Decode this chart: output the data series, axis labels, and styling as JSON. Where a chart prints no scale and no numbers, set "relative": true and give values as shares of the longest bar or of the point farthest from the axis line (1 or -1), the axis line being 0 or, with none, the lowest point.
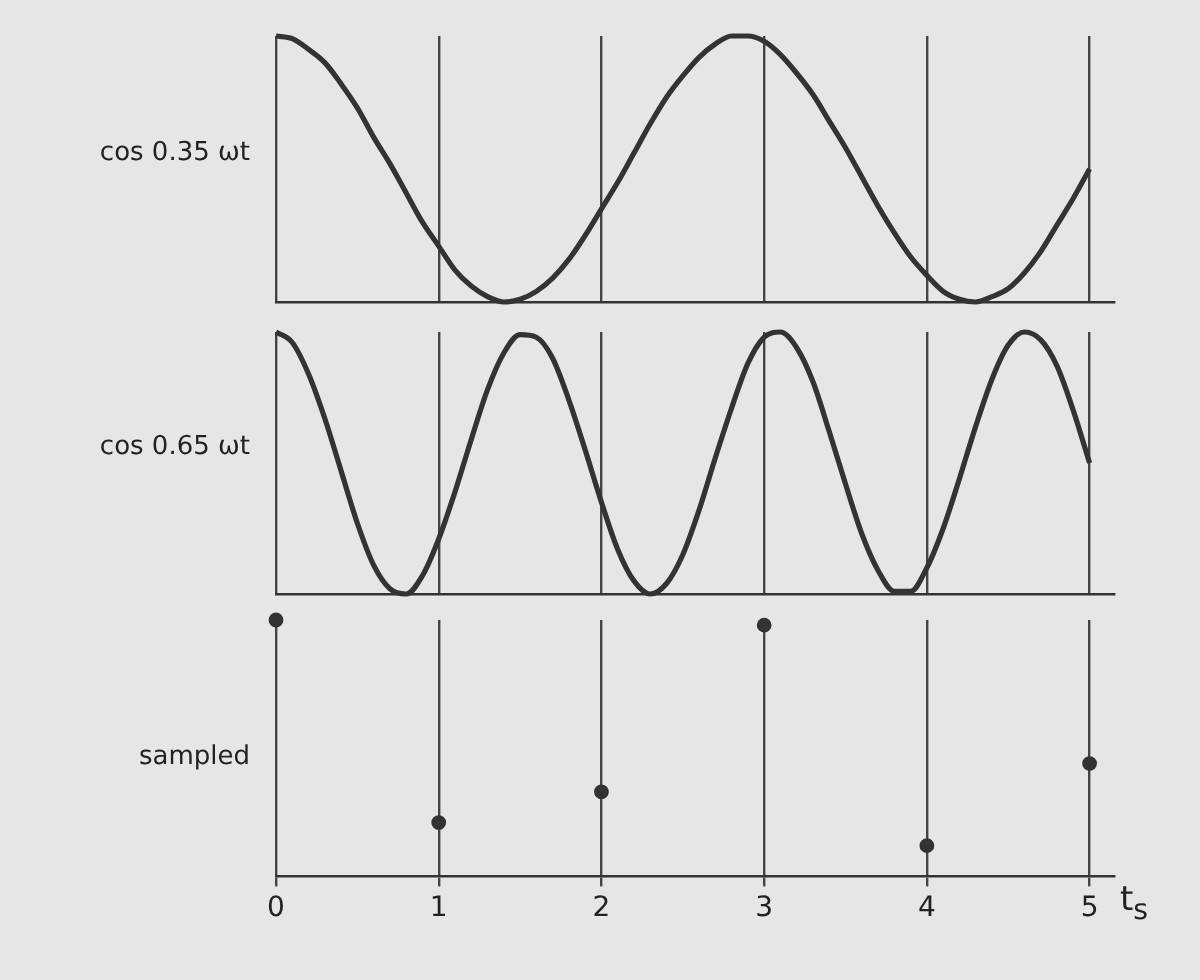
{
  "chart_data": [
    {
      "type": "line",
      "ylabel": "cos 0.35 ωt",
      "relative": true,
      "xlim": [
        0,
        5.15
      ],
      "xticks": [
        0,
        1,
        2,
        3,
        4,
        5
      ],
      "tick_labels": false,
      "grid": "x",
      "marker": "none",
      "color": "#333333",
      "x": [
        0,
        0.1,
        0.2,
        0.3,
        0.4,
        0.5,
        0.6,
        0.7,
        0.8,
        0.9,
        1,
        1.1,
        1.2,
        1.3,
        1.4,
        1.5,
        1.6,
        1.7,
        1.8,
        1.9,
        2,
        2.1,
        2.2,
        2.3,
        2.4,
        2.5,
        2.6,
        2.7,
        2.8,
        2.9,
        3,
        3.1,
        3.2,
        3.3,
        3.4,
        3.5,
        3.6,
        3.7,
        3.8,
        3.9,
        4,
        4.1,
        4.2,
        4.3,
        4.4,
        4.5,
        4.6,
        4.7,
        4.8,
        4.9,
        5
      ],
      "values": [
        1,
        0.99,
        0.95,
        0.9,
        0.82,
        0.73,
        0.62,
        0.52,
        0.41,
        0.3,
        0.21,
        0.12,
        0.06,
        0.02,
        0,
        0.01,
        0.04,
        0.09,
        0.16,
        0.25,
        0.35,
        0.45,
        0.56,
        0.67,
        0.77,
        0.85,
        0.92,
        0.97,
        1,
        1,
        0.98,
        0.93,
        0.86,
        0.78,
        0.68,
        0.58,
        0.47,
        0.36,
        0.26,
        0.17,
        0.1,
        0.04,
        0.01,
        0,
        0.02,
        0.05,
        0.11,
        0.19,
        0.29,
        0.39,
        0.5
      ]
    },
    {
      "type": "line",
      "ylabel": "cos 0.65 ωt",
      "relative": true,
      "xlim": [
        0,
        5.15
      ],
      "xticks": [
        0,
        1,
        2,
        3,
        4,
        5
      ],
      "tick_labels": false,
      "grid": "x",
      "marker": "none",
      "color": "#333333",
      "x": [
        0,
        0.1,
        0.2,
        0.3,
        0.4,
        0.5,
        0.6,
        0.7,
        0.8,
        0.9,
        1,
        1.1,
        1.2,
        1.3,
        1.4,
        1.5,
        1.6,
        1.7,
        1.8,
        1.9,
        2,
        2.1,
        2.2,
        2.3,
        2.4,
        2.5,
        2.6,
        2.7,
        2.8,
        2.9,
        3,
        3.1,
        3.2,
        3.3,
        3.4,
        3.5,
        3.6,
        3.7,
        3.8,
        3.9,
        4,
        4.1,
        4.2,
        4.3,
        4.4,
        4.5,
        4.6,
        4.7,
        4.8,
        4.9,
        5
      ],
      "values": [
        1,
        0.96,
        0.84,
        0.67,
        0.47,
        0.27,
        0.11,
        0.02,
        0,
        0.07,
        0.21,
        0.39,
        0.59,
        0.78,
        0.92,
        0.99,
        0.98,
        0.9,
        0.74,
        0.55,
        0.35,
        0.17,
        0.05,
        0,
        0.04,
        0.15,
        0.32,
        0.52,
        0.71,
        0.88,
        0.98,
        1,
        0.94,
        0.81,
        0.62,
        0.42,
        0.23,
        0.09,
        0.01,
        0.01,
        0.1,
        0.25,
        0.44,
        0.64,
        0.82,
        0.95,
        1,
        0.97,
        0.87,
        0.7,
        0.5
      ]
    },
    {
      "type": "scatter",
      "ylabel": "sampled",
      "xlabel": "t$_{s}$",
      "relative": true,
      "xlim": [
        0,
        5.15
      ],
      "xticks": [
        0,
        1,
        2,
        3,
        4,
        5
      ],
      "tick_labels": "x",
      "grid": "x",
      "marker": "circle",
      "color": "#333333",
      "x": [
        0,
        1,
        2,
        3,
        4,
        5
      ],
      "values": [
        1,
        0.21,
        0.33,
        0.98,
        0.12,
        0.44
      ]
    }
  ]
}
